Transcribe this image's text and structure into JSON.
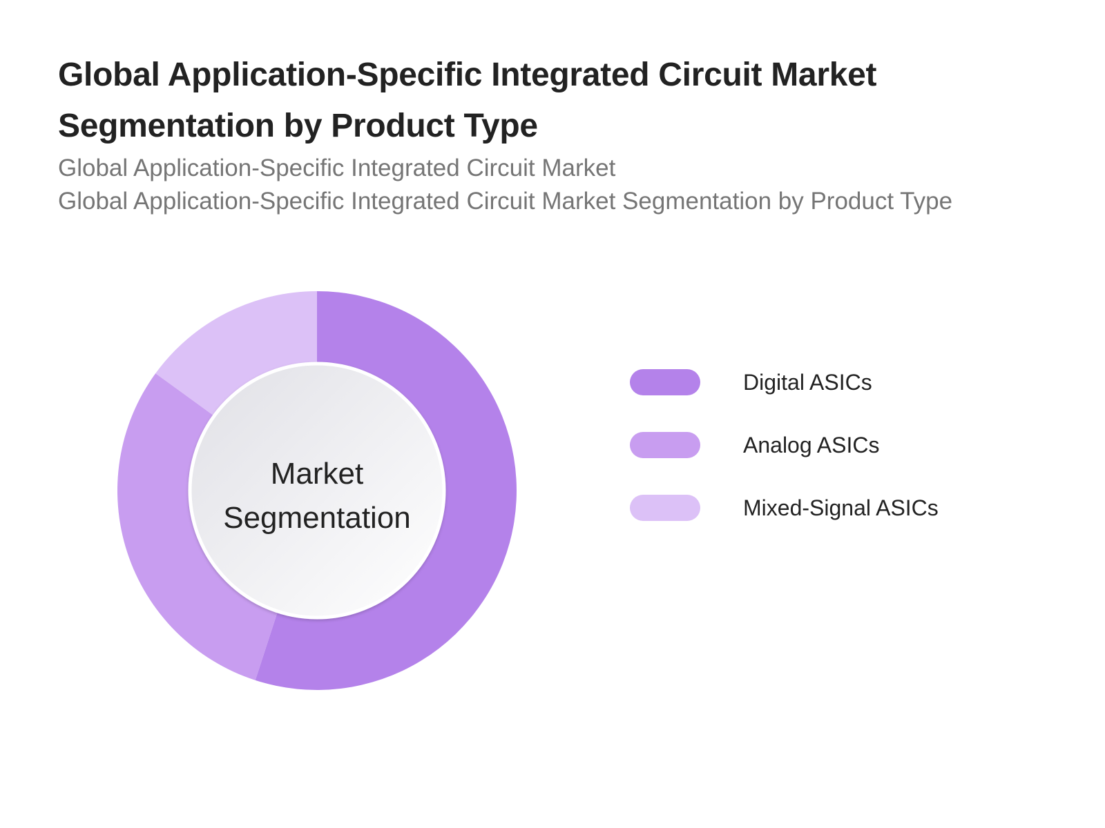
{
  "header": {
    "title": "Global Application-Specific Integrated Circuit Market Segmentation by Product Type",
    "subtitle_1": "Global Application-Specific Integrated Circuit Market",
    "subtitle_2": "Global Application-Specific Integrated Circuit Market Segmentation by Product Type"
  },
  "center_label": {
    "line1": "Market",
    "line2": "Segmentation"
  },
  "legend": [
    {
      "label": "Digital ASICs",
      "color": "#b482ea"
    },
    {
      "label": "Analog ASICs",
      "color": "#c89df0"
    },
    {
      "label": "Mixed-Signal ASICs",
      "color": "#dcc1f7"
    }
  ],
  "chart_data": {
    "type": "pie",
    "subtype": "donut",
    "title": "Global Application-Specific Integrated Circuit Market Segmentation by Product Type",
    "subtitle": "Global Application-Specific Integrated Circuit Market / Global Application-Specific Integrated Circuit Market Segmentation by Product Type",
    "center_text": "Market Segmentation",
    "categories": [
      "Digital ASICs",
      "Analog ASICs",
      "Mixed-Signal ASICs"
    ],
    "values": [
      55,
      30,
      15
    ],
    "unit": "% share (estimated from slice angles)",
    "colors": [
      "#b482ea",
      "#c89df0",
      "#dcc1f7"
    ],
    "start_angle": "12 o'clock, clockwise",
    "legend_position": "right",
    "grid": false
  }
}
